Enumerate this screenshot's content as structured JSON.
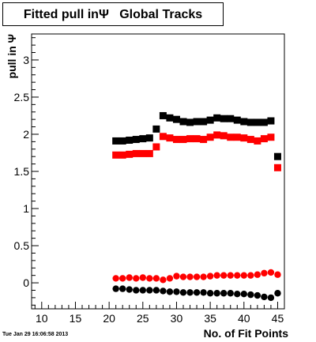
{
  "title": "Fitted pull inΨ   Global Tracks",
  "timestamp": "Tue Jan 29 16:06:58 2013",
  "chart_data": {
    "type": "scatter",
    "title": "Fitted pull inΨ   Global Tracks",
    "xlabel": "No. of Fit Points",
    "ylabel": "pull in  Ψ",
    "xlim": [
      8.5,
      46
    ],
    "ylim": [
      -0.35,
      3.35
    ],
    "x_ticks": [
      10,
      15,
      20,
      25,
      30,
      35,
      40,
      45
    ],
    "y_ticks": [
      0,
      0.5,
      1,
      1.5,
      2,
      2.5,
      3
    ],
    "y_tick_labels": [
      "0",
      "0.5",
      "1",
      "1.5",
      "2",
      "2.5",
      "3"
    ],
    "grid": false,
    "x": [
      21,
      22,
      23,
      24,
      25,
      26,
      27,
      28,
      29,
      30,
      31,
      32,
      33,
      34,
      35,
      36,
      37,
      38,
      39,
      40,
      41,
      42,
      43,
      44,
      45
    ],
    "series": [
      {
        "color": "#000000",
        "marker": "square",
        "values": [
          1.91,
          1.91,
          1.92,
          1.93,
          1.94,
          1.95,
          2.07,
          2.25,
          2.22,
          2.2,
          2.17,
          2.16,
          2.17,
          2.17,
          2.19,
          2.22,
          2.21,
          2.21,
          2.19,
          2.17,
          2.16,
          2.16,
          2.16,
          2.18,
          1.7
        ]
      },
      {
        "color": "#ff0000",
        "marker": "square",
        "values": [
          1.72,
          1.72,
          1.73,
          1.74,
          1.74,
          1.74,
          1.83,
          1.97,
          1.95,
          1.93,
          1.93,
          1.94,
          1.94,
          1.93,
          1.96,
          1.99,
          1.98,
          1.96,
          1.96,
          1.95,
          1.93,
          1.91,
          1.94,
          1.96,
          1.55
        ]
      },
      {
        "color": "#ff0000",
        "marker": "circle",
        "values": [
          0.06,
          0.06,
          0.07,
          0.06,
          0.07,
          0.06,
          0.06,
          0.04,
          0.06,
          0.09,
          0.08,
          0.08,
          0.08,
          0.08,
          0.09,
          0.1,
          0.1,
          0.1,
          0.1,
          0.1,
          0.1,
          0.11,
          0.13,
          0.14,
          0.11
        ]
      },
      {
        "color": "#000000",
        "marker": "circle",
        "values": [
          -0.08,
          -0.08,
          -0.09,
          -0.1,
          -0.1,
          -0.1,
          -0.1,
          -0.11,
          -0.12,
          -0.12,
          -0.13,
          -0.13,
          -0.13,
          -0.13,
          -0.14,
          -0.14,
          -0.14,
          -0.14,
          -0.15,
          -0.15,
          -0.16,
          -0.17,
          -0.19,
          -0.2,
          -0.14
        ]
      }
    ]
  }
}
